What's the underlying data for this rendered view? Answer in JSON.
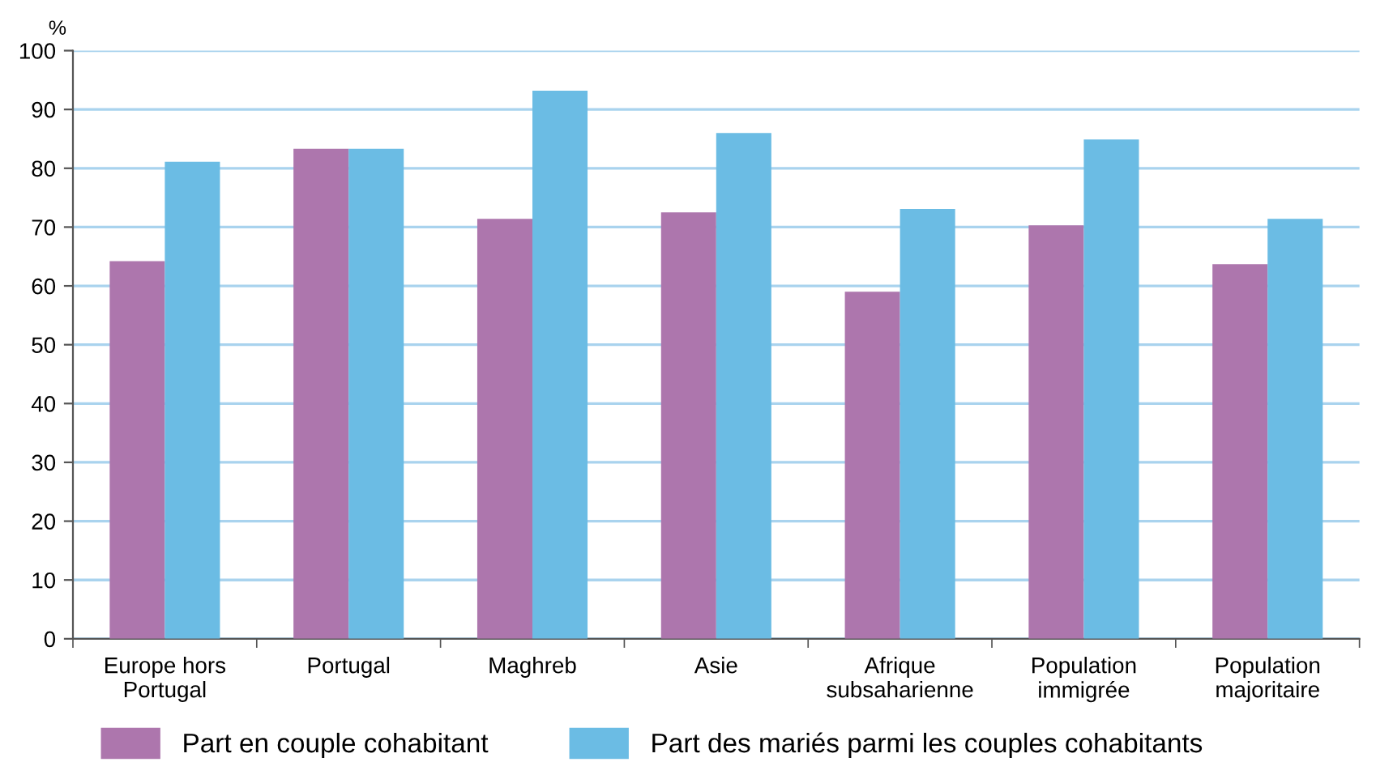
{
  "chart_data": {
    "type": "bar",
    "ylabel": "%",
    "categories": [
      "Europe hors\nPortugal",
      "Portugal",
      "Maghreb",
      "Asie",
      "Afrique\nsubsaharienne",
      "Population\nimmigrée",
      "Population\nmajoritaire"
    ],
    "series": [
      {
        "name": "Part en couple cohabitant",
        "color": "#ad76ad",
        "values": [
          64.2,
          83.3,
          71.4,
          72.5,
          59.0,
          70.3,
          63.7
        ]
      },
      {
        "name": "Part des mariés parmi les couples cohabitants",
        "color": "#6bbce4",
        "values": [
          81.1,
          83.3,
          93.2,
          86.0,
          73.1,
          84.9,
          71.4
        ]
      }
    ],
    "ylim": [
      0,
      100
    ],
    "yticks": [
      0,
      10,
      20,
      30,
      40,
      50,
      60,
      70,
      80,
      90,
      100
    ],
    "grid": "y",
    "legend": "bottom"
  }
}
